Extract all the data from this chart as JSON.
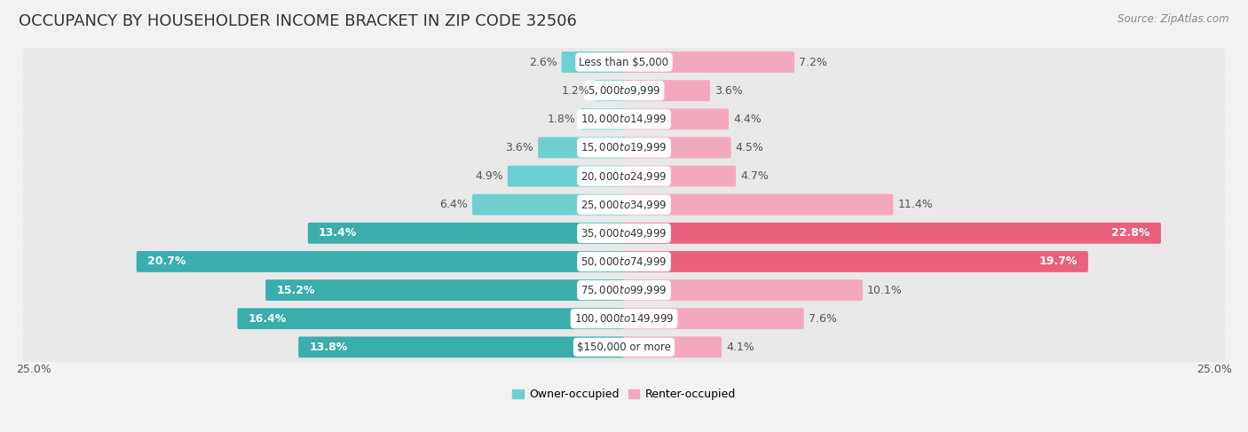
{
  "title": "OCCUPANCY BY HOUSEHOLDER INCOME BRACKET IN ZIP CODE 32506",
  "source": "Source: ZipAtlas.com",
  "categories": [
    "Less than $5,000",
    "$5,000 to $9,999",
    "$10,000 to $14,999",
    "$15,000 to $19,999",
    "$20,000 to $24,999",
    "$25,000 to $34,999",
    "$35,000 to $49,999",
    "$50,000 to $74,999",
    "$75,000 to $99,999",
    "$100,000 to $149,999",
    "$150,000 or more"
  ],
  "owner_values": [
    2.6,
    1.2,
    1.8,
    3.6,
    4.9,
    6.4,
    13.4,
    20.7,
    15.2,
    16.4,
    13.8
  ],
  "renter_values": [
    7.2,
    3.6,
    4.4,
    4.5,
    4.7,
    11.4,
    22.8,
    19.7,
    10.1,
    7.6,
    4.1
  ],
  "owner_color_light": "#6dcfcf",
  "owner_color_dark": "#3aadad",
  "renter_color_light": "#f4a8be",
  "renter_color_dark": "#e8607a",
  "row_bg_color": "#e8e8e8",
  "separator_color": "#f5f5f5",
  "label_bg_color": "white",
  "axis_max": 25.0,
  "title_fontsize": 13,
  "label_fontsize": 9,
  "cat_fontsize": 8.5,
  "tick_fontsize": 9,
  "legend_fontsize": 9,
  "source_fontsize": 8.5
}
